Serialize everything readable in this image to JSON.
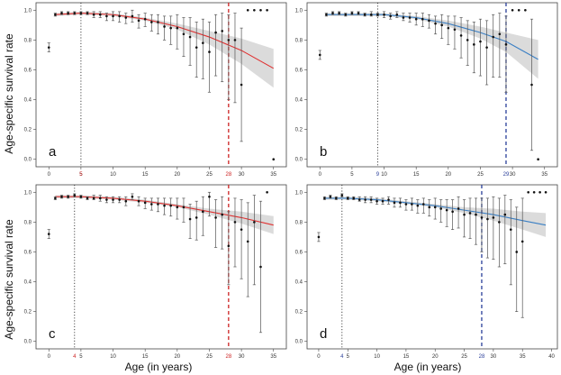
{
  "figure": {
    "y_axis_label": "Age-specific survival rate",
    "x_axis_label": "Age (in years)"
  },
  "chart_data": [
    {
      "panel": "a",
      "type": "scatter",
      "xlim": [
        -2,
        37
      ],
      "ylim": [
        -0.05,
        1.05
      ],
      "xticks": [
        0,
        5,
        10,
        15,
        20,
        25,
        30,
        35
      ],
      "yticks": [
        0.0,
        0.2,
        0.4,
        0.6,
        0.8,
        1.0
      ],
      "fit_color": "#e03030",
      "marker_color": "#cc2222",
      "markers": [
        {
          "x": 5,
          "label": "5",
          "style": "dotted"
        },
        {
          "x": 28,
          "label": "28",
          "style": "dashed"
        }
      ],
      "fit": {
        "x": [
          1,
          5,
          10,
          15,
          20,
          25,
          30,
          35
        ],
        "y": [
          0.97,
          0.98,
          0.97,
          0.94,
          0.89,
          0.82,
          0.73,
          0.61
        ],
        "lower": [
          0.96,
          0.97,
          0.96,
          0.93,
          0.87,
          0.77,
          0.64,
          0.48
        ],
        "upper": [
          0.98,
          0.99,
          0.98,
          0.95,
          0.91,
          0.86,
          0.81,
          0.74
        ]
      },
      "points": [
        {
          "x": 0,
          "y": 0.75,
          "lo": 0.72,
          "hi": 0.78
        },
        {
          "x": 1,
          "y": 0.97,
          "lo": 0.96,
          "hi": 0.98
        },
        {
          "x": 2,
          "y": 0.98,
          "lo": 0.97,
          "hi": 0.99
        },
        {
          "x": 3,
          "y": 0.98,
          "lo": 0.97,
          "hi": 0.99
        },
        {
          "x": 4,
          "y": 0.98,
          "lo": 0.97,
          "hi": 0.99
        },
        {
          "x": 5,
          "y": 0.98,
          "lo": 0.97,
          "hi": 0.99
        },
        {
          "x": 6,
          "y": 0.98,
          "lo": 0.97,
          "hi": 0.99
        },
        {
          "x": 7,
          "y": 0.97,
          "lo": 0.95,
          "hi": 0.99
        },
        {
          "x": 8,
          "y": 0.97,
          "lo": 0.95,
          "hi": 0.99
        },
        {
          "x": 9,
          "y": 0.96,
          "lo": 0.93,
          "hi": 0.98
        },
        {
          "x": 10,
          "y": 0.96,
          "lo": 0.93,
          "hi": 0.99
        },
        {
          "x": 11,
          "y": 0.96,
          "lo": 0.92,
          "hi": 0.99
        },
        {
          "x": 12,
          "y": 0.95,
          "lo": 0.91,
          "hi": 0.98
        },
        {
          "x": 13,
          "y": 0.96,
          "lo": 0.92,
          "hi": 1.0
        },
        {
          "x": 14,
          "y": 0.93,
          "lo": 0.88,
          "hi": 0.97
        },
        {
          "x": 15,
          "y": 0.94,
          "lo": 0.89,
          "hi": 0.98
        },
        {
          "x": 16,
          "y": 0.92,
          "lo": 0.86,
          "hi": 0.97
        },
        {
          "x": 17,
          "y": 0.92,
          "lo": 0.84,
          "hi": 0.97
        },
        {
          "x": 18,
          "y": 0.89,
          "lo": 0.8,
          "hi": 0.96
        },
        {
          "x": 19,
          "y": 0.88,
          "lo": 0.77,
          "hi": 0.96
        },
        {
          "x": 20,
          "y": 0.88,
          "lo": 0.74,
          "hi": 0.97
        },
        {
          "x": 21,
          "y": 0.84,
          "lo": 0.69,
          "hi": 0.95
        },
        {
          "x": 22,
          "y": 0.82,
          "lo": 0.63,
          "hi": 0.95
        },
        {
          "x": 23,
          "y": 0.75,
          "lo": 0.55,
          "hi": 0.92
        },
        {
          "x": 24,
          "y": 0.78,
          "lo": 0.54,
          "hi": 0.94
        },
        {
          "x": 25,
          "y": 0.72,
          "lo": 0.45,
          "hi": 0.92
        },
        {
          "x": 26,
          "y": 0.85,
          "lo": 0.56,
          "hi": 0.97
        },
        {
          "x": 27,
          "y": 0.86,
          "lo": 0.52,
          "hi": 0.98
        },
        {
          "x": 28,
          "y": 0.8,
          "lo": 0.4,
          "hi": 0.97
        },
        {
          "x": 29,
          "y": 0.8,
          "lo": 0.38,
          "hi": 0.98
        },
        {
          "x": 30,
          "y": 0.5,
          "lo": 0.12,
          "hi": 0.88
        },
        {
          "x": 31,
          "y": 1.0
        },
        {
          "x": 32,
          "y": 1.0
        },
        {
          "x": 33,
          "y": 1.0
        },
        {
          "x": 34,
          "y": 1.0
        },
        {
          "x": 35,
          "y": 0.0
        }
      ]
    },
    {
      "panel": "b",
      "type": "scatter",
      "xlim": [
        -2,
        37
      ],
      "ylim": [
        -0.05,
        1.05
      ],
      "xticks": [
        0,
        5,
        10,
        15,
        20,
        25,
        30,
        35
      ],
      "yticks": [
        0.0,
        0.2,
        0.4,
        0.6,
        0.8,
        1.0
      ],
      "fit_color": "#3a7fc4",
      "marker_color": "#2a3f9a",
      "markers": [
        {
          "x": 9,
          "label": "9",
          "style": "dotted"
        },
        {
          "x": 29,
          "label": "29",
          "style": "dashed"
        }
      ],
      "fit": {
        "x": [
          1,
          5,
          10,
          15,
          20,
          25,
          29,
          34
        ],
        "y": [
          0.97,
          0.97,
          0.97,
          0.95,
          0.91,
          0.85,
          0.79,
          0.67
        ],
        "lower": [
          0.96,
          0.96,
          0.96,
          0.94,
          0.89,
          0.81,
          0.72,
          0.54
        ],
        "upper": [
          0.98,
          0.98,
          0.98,
          0.96,
          0.93,
          0.89,
          0.85,
          0.8
        ]
      },
      "points": [
        {
          "x": 0,
          "y": 0.7,
          "lo": 0.67,
          "hi": 0.73
        },
        {
          "x": 1,
          "y": 0.97,
          "lo": 0.96,
          "hi": 0.98
        },
        {
          "x": 2,
          "y": 0.98,
          "lo": 0.97,
          "hi": 0.99
        },
        {
          "x": 3,
          "y": 0.98,
          "lo": 0.97,
          "hi": 0.99
        },
        {
          "x": 4,
          "y": 0.97,
          "lo": 0.96,
          "hi": 0.98
        },
        {
          "x": 5,
          "y": 0.98,
          "lo": 0.97,
          "hi": 0.99
        },
        {
          "x": 6,
          "y": 0.98,
          "lo": 0.97,
          "hi": 0.99
        },
        {
          "x": 7,
          "y": 0.97,
          "lo": 0.96,
          "hi": 0.98
        },
        {
          "x": 8,
          "y": 0.97,
          "lo": 0.96,
          "hi": 0.99
        },
        {
          "x": 9,
          "y": 0.97,
          "lo": 0.96,
          "hi": 0.98
        },
        {
          "x": 10,
          "y": 0.97,
          "lo": 0.95,
          "hi": 0.99
        },
        {
          "x": 11,
          "y": 0.96,
          "lo": 0.94,
          "hi": 0.98
        },
        {
          "x": 12,
          "y": 0.97,
          "lo": 0.95,
          "hi": 0.99
        },
        {
          "x": 13,
          "y": 0.95,
          "lo": 0.93,
          "hi": 0.98
        },
        {
          "x": 14,
          "y": 0.95,
          "lo": 0.92,
          "hi": 0.98
        },
        {
          "x": 15,
          "y": 0.94,
          "lo": 0.9,
          "hi": 0.98
        },
        {
          "x": 16,
          "y": 0.94,
          "lo": 0.89,
          "hi": 0.98
        },
        {
          "x": 17,
          "y": 0.93,
          "lo": 0.88,
          "hi": 0.97
        },
        {
          "x": 18,
          "y": 0.91,
          "lo": 0.84,
          "hi": 0.96
        },
        {
          "x": 19,
          "y": 0.9,
          "lo": 0.81,
          "hi": 0.97
        },
        {
          "x": 20,
          "y": 0.88,
          "lo": 0.77,
          "hi": 0.96
        },
        {
          "x": 21,
          "y": 0.87,
          "lo": 0.74,
          "hi": 0.96
        },
        {
          "x": 22,
          "y": 0.83,
          "lo": 0.68,
          "hi": 0.95
        },
        {
          "x": 23,
          "y": 0.8,
          "lo": 0.63,
          "hi": 0.93
        },
        {
          "x": 24,
          "y": 0.77,
          "lo": 0.58,
          "hi": 0.92
        },
        {
          "x": 25,
          "y": 0.79,
          "lo": 0.56,
          "hi": 0.94
        },
        {
          "x": 26,
          "y": 0.75,
          "lo": 0.5,
          "hi": 0.93
        },
        {
          "x": 27,
          "y": 0.82,
          "lo": 0.55,
          "hi": 0.97
        },
        {
          "x": 28,
          "y": 0.84,
          "lo": 0.55,
          "hi": 0.98
        },
        {
          "x": 29,
          "y": 0.77,
          "lo": 0.45,
          "hi": 0.96
        },
        {
          "x": 30,
          "y": 1.0
        },
        {
          "x": 31,
          "y": 1.0
        },
        {
          "x": 32,
          "y": 1.0
        },
        {
          "x": 33,
          "y": 0.5,
          "lo": 0.06,
          "hi": 0.94
        },
        {
          "x": 34,
          "y": 0.0
        }
      ]
    },
    {
      "panel": "c",
      "type": "scatter",
      "xlim": [
        -2,
        37
      ],
      "ylim": [
        -0.05,
        1.05
      ],
      "xticks": [
        0,
        5,
        10,
        15,
        20,
        25,
        30,
        35
      ],
      "yticks": [
        0.0,
        0.2,
        0.4,
        0.6,
        0.8,
        1.0
      ],
      "fit_color": "#e03030",
      "marker_color": "#cc2222",
      "markers": [
        {
          "x": 4,
          "label": "4",
          "style": "dotted"
        },
        {
          "x": 28,
          "label": "28",
          "style": "dashed"
        }
      ],
      "fit": {
        "x": [
          1,
          5,
          10,
          15,
          20,
          25,
          30,
          35
        ],
        "y": [
          0.97,
          0.97,
          0.96,
          0.94,
          0.91,
          0.87,
          0.83,
          0.78
        ],
        "lower": [
          0.96,
          0.96,
          0.95,
          0.93,
          0.9,
          0.85,
          0.79,
          0.72
        ],
        "upper": [
          0.98,
          0.98,
          0.97,
          0.95,
          0.92,
          0.89,
          0.87,
          0.84
        ]
      },
      "points": [
        {
          "x": 0,
          "y": 0.72,
          "lo": 0.69,
          "hi": 0.75
        },
        {
          "x": 1,
          "y": 0.96,
          "lo": 0.95,
          "hi": 0.97
        },
        {
          "x": 2,
          "y": 0.97,
          "lo": 0.96,
          "hi": 0.98
        },
        {
          "x": 3,
          "y": 0.97,
          "lo": 0.96,
          "hi": 0.98
        },
        {
          "x": 4,
          "y": 0.98,
          "lo": 0.97,
          "hi": 0.99
        },
        {
          "x": 5,
          "y": 0.97,
          "lo": 0.96,
          "hi": 0.98
        },
        {
          "x": 6,
          "y": 0.96,
          "lo": 0.95,
          "hi": 0.97
        },
        {
          "x": 7,
          "y": 0.96,
          "lo": 0.95,
          "hi": 0.98
        },
        {
          "x": 8,
          "y": 0.96,
          "lo": 0.94,
          "hi": 0.98
        },
        {
          "x": 9,
          "y": 0.95,
          "lo": 0.93,
          "hi": 0.97
        },
        {
          "x": 10,
          "y": 0.95,
          "lo": 0.93,
          "hi": 0.97
        },
        {
          "x": 11,
          "y": 0.95,
          "lo": 0.93,
          "hi": 0.97
        },
        {
          "x": 12,
          "y": 0.94,
          "lo": 0.91,
          "hi": 0.97
        },
        {
          "x": 13,
          "y": 0.97,
          "lo": 0.95,
          "hi": 0.99
        },
        {
          "x": 14,
          "y": 0.94,
          "lo": 0.91,
          "hi": 0.97
        },
        {
          "x": 15,
          "y": 0.93,
          "lo": 0.89,
          "hi": 0.96
        },
        {
          "x": 16,
          "y": 0.92,
          "lo": 0.88,
          "hi": 0.96
        },
        {
          "x": 17,
          "y": 0.92,
          "lo": 0.87,
          "hi": 0.96
        },
        {
          "x": 18,
          "y": 0.91,
          "lo": 0.85,
          "hi": 0.96
        },
        {
          "x": 19,
          "y": 0.91,
          "lo": 0.84,
          "hi": 0.96
        },
        {
          "x": 20,
          "y": 0.9,
          "lo": 0.82,
          "hi": 0.96
        },
        {
          "x": 21,
          "y": 0.9,
          "lo": 0.8,
          "hi": 0.96
        },
        {
          "x": 22,
          "y": 0.82,
          "lo": 0.69,
          "hi": 0.92
        },
        {
          "x": 23,
          "y": 0.83,
          "lo": 0.68,
          "hi": 0.94
        },
        {
          "x": 24,
          "y": 0.87,
          "lo": 0.71,
          "hi": 0.97
        },
        {
          "x": 25,
          "y": 0.97,
          "lo": 0.84,
          "hi": 1.0
        },
        {
          "x": 26,
          "y": 0.83,
          "lo": 0.63,
          "hi": 0.95
        },
        {
          "x": 27,
          "y": 0.85,
          "lo": 0.62,
          "hi": 0.97
        },
        {
          "x": 28,
          "y": 0.64,
          "lo": 0.38,
          "hi": 0.87
        },
        {
          "x": 29,
          "y": 0.8,
          "lo": 0.5,
          "hi": 0.96
        },
        {
          "x": 30,
          "y": 0.75,
          "lo": 0.42,
          "hi": 0.95
        },
        {
          "x": 31,
          "y": 0.67,
          "lo": 0.3,
          "hi": 0.93
        },
        {
          "x": 32,
          "y": 0.8,
          "lo": 0.38,
          "hi": 0.98
        },
        {
          "x": 33,
          "y": 0.5,
          "lo": 0.06,
          "hi": 0.94
        },
        {
          "x": 34,
          "y": 1.0
        }
      ]
    },
    {
      "panel": "d",
      "type": "scatter",
      "xlim": [
        -2,
        41
      ],
      "ylim": [
        -0.05,
        1.05
      ],
      "xticks": [
        0,
        5,
        10,
        15,
        20,
        25,
        30,
        35,
        40
      ],
      "yticks": [
        0.0,
        0.2,
        0.4,
        0.6,
        0.8,
        1.0
      ],
      "fit_color": "#3a7fc4",
      "marker_color": "#2a3f9a",
      "markers": [
        {
          "x": 4,
          "label": "4",
          "style": "dotted"
        },
        {
          "x": 28,
          "label": "28",
          "style": "dashed"
        }
      ],
      "fit": {
        "x": [
          1,
          5,
          10,
          15,
          20,
          25,
          30,
          35,
          39
        ],
        "y": [
          0.96,
          0.96,
          0.95,
          0.93,
          0.91,
          0.88,
          0.85,
          0.81,
          0.78
        ],
        "lower": [
          0.95,
          0.95,
          0.94,
          0.92,
          0.9,
          0.86,
          0.81,
          0.75,
          0.7
        ],
        "upper": [
          0.97,
          0.97,
          0.96,
          0.94,
          0.92,
          0.9,
          0.89,
          0.87,
          0.86
        ]
      },
      "points": [
        {
          "x": 0,
          "y": 0.7,
          "lo": 0.67,
          "hi": 0.73
        },
        {
          "x": 1,
          "y": 0.96,
          "lo": 0.95,
          "hi": 0.97
        },
        {
          "x": 2,
          "y": 0.97,
          "lo": 0.96,
          "hi": 0.98
        },
        {
          "x": 3,
          "y": 0.96,
          "lo": 0.95,
          "hi": 0.97
        },
        {
          "x": 4,
          "y": 0.98,
          "lo": 0.97,
          "hi": 0.99
        },
        {
          "x": 5,
          "y": 0.96,
          "lo": 0.95,
          "hi": 0.97
        },
        {
          "x": 6,
          "y": 0.96,
          "lo": 0.95,
          "hi": 0.97
        },
        {
          "x": 7,
          "y": 0.95,
          "lo": 0.94,
          "hi": 0.97
        },
        {
          "x": 8,
          "y": 0.95,
          "lo": 0.93,
          "hi": 0.97
        },
        {
          "x": 9,
          "y": 0.95,
          "lo": 0.93,
          "hi": 0.97
        },
        {
          "x": 10,
          "y": 0.94,
          "lo": 0.92,
          "hi": 0.96
        },
        {
          "x": 11,
          "y": 0.94,
          "lo": 0.92,
          "hi": 0.96
        },
        {
          "x": 12,
          "y": 0.95,
          "lo": 0.92,
          "hi": 0.97
        },
        {
          "x": 13,
          "y": 0.93,
          "lo": 0.9,
          "hi": 0.96
        },
        {
          "x": 14,
          "y": 0.93,
          "lo": 0.9,
          "hi": 0.96
        },
        {
          "x": 15,
          "y": 0.92,
          "lo": 0.88,
          "hi": 0.95
        },
        {
          "x": 16,
          "y": 0.92,
          "lo": 0.88,
          "hi": 0.96
        },
        {
          "x": 17,
          "y": 0.91,
          "lo": 0.86,
          "hi": 0.95
        },
        {
          "x": 18,
          "y": 0.92,
          "lo": 0.86,
          "hi": 0.96
        },
        {
          "x": 19,
          "y": 0.9,
          "lo": 0.84,
          "hi": 0.95
        },
        {
          "x": 20,
          "y": 0.9,
          "lo": 0.82,
          "hi": 0.96
        },
        {
          "x": 21,
          "y": 0.89,
          "lo": 0.8,
          "hi": 0.95
        },
        {
          "x": 22,
          "y": 0.88,
          "lo": 0.77,
          "hi": 0.95
        },
        {
          "x": 23,
          "y": 0.87,
          "lo": 0.75,
          "hi": 0.95
        },
        {
          "x": 24,
          "y": 0.89,
          "lo": 0.76,
          "hi": 0.97
        },
        {
          "x": 25,
          "y": 0.85,
          "lo": 0.7,
          "hi": 0.95
        },
        {
          "x": 26,
          "y": 0.86,
          "lo": 0.69,
          "hi": 0.96
        },
        {
          "x": 27,
          "y": 0.85,
          "lo": 0.65,
          "hi": 0.96
        },
        {
          "x": 28,
          "y": 0.83,
          "lo": 0.6,
          "hi": 0.96
        },
        {
          "x": 29,
          "y": 0.82,
          "lo": 0.56,
          "hi": 0.96
        },
        {
          "x": 30,
          "y": 0.83,
          "lo": 0.55,
          "hi": 0.97
        },
        {
          "x": 31,
          "y": 0.8,
          "lo": 0.5,
          "hi": 0.96
        },
        {
          "x": 32,
          "y": 0.85,
          "lo": 0.52,
          "hi": 0.98
        },
        {
          "x": 33,
          "y": 0.75,
          "lo": 0.38,
          "hi": 0.95
        },
        {
          "x": 34,
          "y": 0.6,
          "lo": 0.2,
          "hi": 0.9
        },
        {
          "x": 35,
          "y": 0.67,
          "lo": 0.16,
          "hi": 0.96
        },
        {
          "x": 36,
          "y": 1.0
        },
        {
          "x": 37,
          "y": 1.0
        },
        {
          "x": 38,
          "y": 1.0
        },
        {
          "x": 39,
          "y": 1.0
        }
      ]
    }
  ]
}
